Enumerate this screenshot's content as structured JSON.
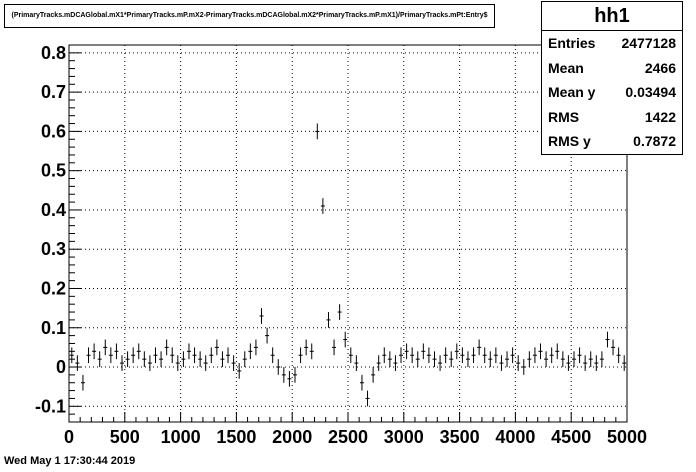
{
  "title": "(PrimaryTracks.mDCAGlobal.mX1*PrimaryTracks.mP.mX2-PrimaryTracks.mDCAGlobal.mX2*PrimaryTracks.mP.mX1)/PrimaryTracks.mPt:Entry$",
  "stats": {
    "name": "hh1",
    "rows": [
      {
        "label": "Entries",
        "value": "2477128"
      },
      {
        "label": "Mean",
        "value": "2466"
      },
      {
        "label": "Mean y",
        "value": "0.03494"
      },
      {
        "label": "RMS",
        "value": "1422"
      },
      {
        "label": "RMS y",
        "value": "0.7872"
      }
    ]
  },
  "footer": "Wed May  1 17:30:44 2019",
  "chart_data": {
    "type": "scatter",
    "title": "",
    "xlabel": "",
    "ylabel": "",
    "xlim": [
      0,
      5000
    ],
    "ylim": [
      -0.14,
      0.82
    ],
    "x_ticks": [
      0,
      500,
      1000,
      1500,
      2000,
      2500,
      3000,
      3500,
      4000,
      4500,
      5000
    ],
    "y_ticks": [
      "-0.1",
      "0",
      "0.1",
      "0.2",
      "0.3",
      "0.4",
      "0.5",
      "0.6",
      "0.7",
      "0.8"
    ],
    "grid": true,
    "series": [
      {
        "x": [
          25,
          75,
          125,
          175,
          225,
          275,
          325,
          375,
          425,
          475,
          525,
          575,
          625,
          675,
          725,
          775,
          825,
          875,
          925,
          975,
          1025,
          1075,
          1125,
          1175,
          1225,
          1275,
          1325,
          1375,
          1425,
          1475,
          1525,
          1575,
          1625,
          1675,
          1725,
          1775,
          1825,
          1875,
          1925,
          1975,
          2025,
          2075,
          2125,
          2175,
          2225,
          2275,
          2325,
          2375,
          2425,
          2475,
          2525,
          2575,
          2625,
          2675,
          2725,
          2775,
          2825,
          2875,
          2925,
          2975,
          3025,
          3075,
          3125,
          3175,
          3225,
          3275,
          3325,
          3375,
          3425,
          3475,
          3525,
          3575,
          3625,
          3675,
          3725,
          3775,
          3825,
          3875,
          3925,
          3975,
          4025,
          4075,
          4125,
          4175,
          4225,
          4275,
          4325,
          4375,
          4425,
          4475,
          4525,
          4575,
          4625,
          4675,
          4725,
          4775,
          4825,
          4875,
          4925,
          4975
        ],
        "y": [
          0.03,
          0.01,
          -0.04,
          0.03,
          0.04,
          0.02,
          0.05,
          0.03,
          0.04,
          0.01,
          0.02,
          0.03,
          0.04,
          0.02,
          0.01,
          0.03,
          0.02,
          0.05,
          0.03,
          0.01,
          0.02,
          0.04,
          0.03,
          0.02,
          0.01,
          0.03,
          0.05,
          0.02,
          0.03,
          0.01,
          -0.01,
          0.02,
          0.04,
          0.05,
          0.13,
          0.08,
          0.03,
          0.0,
          -0.02,
          -0.03,
          -0.02,
          0.03,
          0.05,
          0.04,
          0.6,
          0.41,
          0.12,
          0.05,
          0.14,
          0.07,
          0.03,
          0.01,
          -0.04,
          -0.08,
          -0.02,
          0.01,
          0.03,
          0.02,
          0.01,
          0.03,
          0.04,
          0.03,
          0.02,
          0.04,
          0.03,
          0.02,
          0.01,
          0.03,
          0.02,
          0.04,
          0.03,
          0.02,
          0.03,
          0.05,
          0.03,
          0.02,
          0.03,
          0.01,
          0.02,
          0.03,
          0.01,
          0.0,
          0.02,
          0.03,
          0.04,
          0.02,
          0.03,
          0.04,
          0.02,
          0.01,
          0.02,
          0.03,
          0.01,
          0.02,
          0.01,
          0.02,
          0.07,
          0.05,
          0.03,
          0.01
        ],
        "yerr": [
          0.02,
          0.02,
          0.02,
          0.02,
          0.02,
          0.02,
          0.02,
          0.02,
          0.02,
          0.02,
          0.02,
          0.02,
          0.02,
          0.02,
          0.02,
          0.02,
          0.02,
          0.02,
          0.02,
          0.02,
          0.02,
          0.02,
          0.02,
          0.02,
          0.02,
          0.02,
          0.02,
          0.02,
          0.02,
          0.02,
          0.02,
          0.02,
          0.02,
          0.02,
          0.02,
          0.02,
          0.02,
          0.02,
          0.02,
          0.02,
          0.02,
          0.02,
          0.02,
          0.02,
          0.02,
          0.02,
          0.02,
          0.02,
          0.02,
          0.02,
          0.02,
          0.02,
          0.02,
          0.02,
          0.02,
          0.02,
          0.02,
          0.02,
          0.02,
          0.02,
          0.02,
          0.02,
          0.02,
          0.02,
          0.02,
          0.02,
          0.02,
          0.02,
          0.02,
          0.02,
          0.02,
          0.02,
          0.02,
          0.02,
          0.02,
          0.02,
          0.02,
          0.02,
          0.02,
          0.02,
          0.02,
          0.02,
          0.02,
          0.02,
          0.02,
          0.02,
          0.02,
          0.02,
          0.02,
          0.02,
          0.02,
          0.02,
          0.02,
          0.02,
          0.02,
          0.02,
          0.02,
          0.02,
          0.02,
          0.02
        ]
      }
    ]
  }
}
